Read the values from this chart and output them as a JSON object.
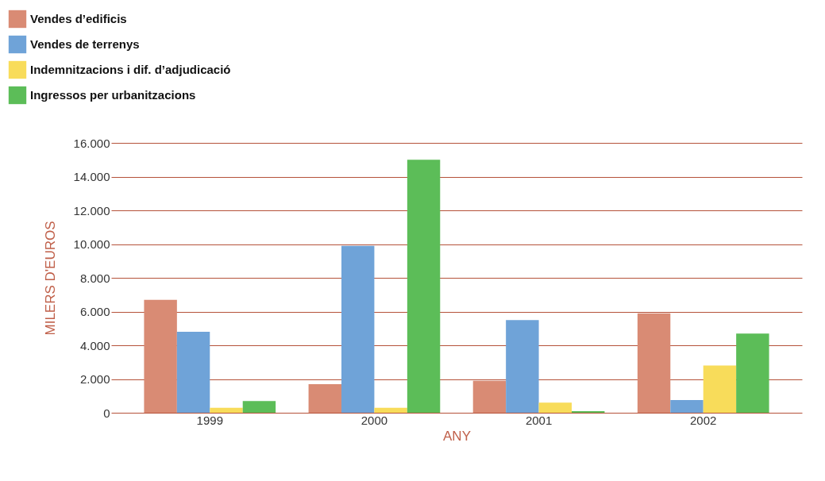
{
  "chart_data": {
    "type": "bar",
    "xlabel": "ANY",
    "ylabel": "MILERS D'EUROS",
    "categories": [
      "1999",
      "2000",
      "2001",
      "2002"
    ],
    "series": [
      {
        "name": "Vendes d’edificis",
        "color": "#d98b74",
        "values": [
          6700,
          1700,
          1900,
          5900
        ]
      },
      {
        "name": "Vendes de terrenys",
        "color": "#6fa3d8",
        "values": [
          4800,
          9900,
          5500,
          750
        ]
      },
      {
        "name": "Indemnitzacions i dif. d’adjudicació",
        "color": "#f8dc5a",
        "values": [
          300,
          300,
          600,
          2800
        ]
      },
      {
        "name": "Ingressos per urbanitzacions",
        "color": "#5cbd58",
        "values": [
          700,
          15000,
          100,
          4700
        ]
      }
    ],
    "ylim": [
      0,
      16000
    ],
    "yticks": [
      {
        "value": 0,
        "label": "0"
      },
      {
        "value": 2000,
        "label": "2.000"
      },
      {
        "value": 4000,
        "label": "4.000"
      },
      {
        "value": 6000,
        "label": "6.000"
      },
      {
        "value": 8000,
        "label": "8.000"
      },
      {
        "value": 10000,
        "label": "10.000"
      },
      {
        "value": 12000,
        "label": "12.000"
      },
      {
        "value": 14000,
        "label": "14.000"
      },
      {
        "value": 16000,
        "label": "16.000"
      }
    ],
    "grid": "y",
    "legend": "top left"
  }
}
